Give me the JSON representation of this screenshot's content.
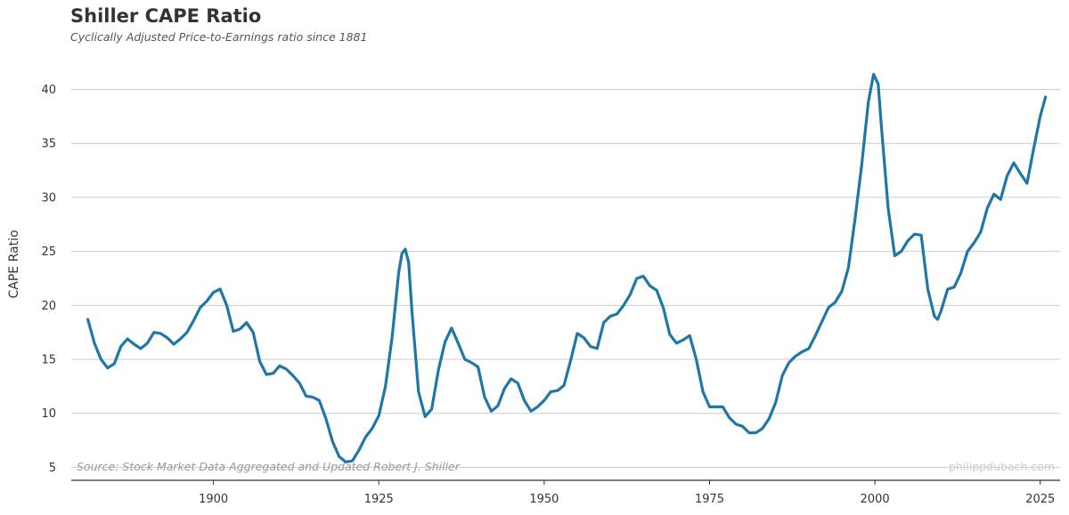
{
  "chart_data": {
    "type": "line",
    "title": "Shiller CAPE Ratio",
    "subtitle": "Cyclically Adjusted Price-to-Earnings ratio since 1881",
    "ylabel": "CAPE Ratio",
    "xlabel": "",
    "xlim": [
      1878.5,
      2028
    ],
    "ylim": [
      3.8,
      43.5
    ],
    "x_ticks": [
      1900,
      1925,
      1950,
      1975,
      2000,
      2025
    ],
    "y_ticks": [
      5,
      10,
      15,
      20,
      25,
      30,
      35,
      40
    ],
    "grid": "horizontal",
    "legend": "none",
    "line_color": "#1f77a8",
    "source": "Source: Stock Market Data Aggregated and Updated Robert J. Shiller",
    "credit": "philippdubach.com",
    "series": [
      {
        "x": [
          1881,
          1882,
          1883,
          1884,
          1885,
          1886,
          1887,
          1888,
          1889,
          1890,
          1891,
          1892,
          1893,
          1894,
          1895,
          1896,
          1897,
          1898,
          1899,
          1900,
          1901,
          1902,
          1903,
          1904,
          1905,
          1906,
          1907,
          1908,
          1909,
          1910,
          1911,
          1912,
          1913,
          1914,
          1915,
          1916,
          1917,
          1918,
          1919,
          1920,
          1921,
          1922,
          1923,
          1924,
          1925,
          1926,
          1927,
          1928,
          1928.5,
          1929,
          1929.5,
          1930,
          1931,
          1932,
          1933,
          1934,
          1935,
          1936,
          1937,
          1938,
          1939,
          1940,
          1941,
          1942,
          1943,
          1944,
          1945,
          1946,
          1947,
          1948,
          1949,
          1950,
          1951,
          1952,
          1953,
          1954,
          1955,
          1956,
          1957,
          1958,
          1959,
          1960,
          1961,
          1962,
          1963,
          1964,
          1965,
          1966,
          1967,
          1968,
          1969,
          1970,
          1971,
          1972,
          1973,
          1974,
          1975,
          1976,
          1977,
          1978,
          1979,
          1980,
          1981,
          1982,
          1983,
          1984,
          1985,
          1986,
          1987,
          1988,
          1989,
          1990,
          1991,
          1992,
          1993,
          1994,
          1995,
          1996,
          1997,
          1998,
          1999,
          1999.8,
          2000.5,
          2001,
          2002,
          2003,
          2004,
          2005,
          2006,
          2007,
          2008,
          2009,
          2009.5,
          2010,
          2011,
          2012,
          2013,
          2014,
          2015,
          2016,
          2017,
          2018,
          2019,
          2020,
          2021,
          2022,
          2023,
          2024,
          2025,
          2025.8
        ],
        "y": [
          18.7,
          16.5,
          15.0,
          14.2,
          14.6,
          16.2,
          16.9,
          16.4,
          16.0,
          16.5,
          17.5,
          17.4,
          17.0,
          16.4,
          16.9,
          17.5,
          18.6,
          19.8,
          20.4,
          21.2,
          21.5,
          20.0,
          17.6,
          17.8,
          18.4,
          17.5,
          14.8,
          13.6,
          13.7,
          14.4,
          14.1,
          13.5,
          12.8,
          11.6,
          11.5,
          11.2,
          9.5,
          7.4,
          6.0,
          5.5,
          5.6,
          6.6,
          7.8,
          8.6,
          9.8,
          12.5,
          17.0,
          23.0,
          24.8,
          25.2,
          24.0,
          19.5,
          12.0,
          9.7,
          10.4,
          14.0,
          16.6,
          17.9,
          16.5,
          15.0,
          14.7,
          14.3,
          11.5,
          10.2,
          10.7,
          12.3,
          13.2,
          12.8,
          11.2,
          10.2,
          10.6,
          11.2,
          12.0,
          12.1,
          12.6,
          14.9,
          17.4,
          17.0,
          16.2,
          16.0,
          18.4,
          19.0,
          19.2,
          20.0,
          21.0,
          22.5,
          22.7,
          21.8,
          21.4,
          19.8,
          17.3,
          16.5,
          16.8,
          17.2,
          15.0,
          12.0,
          10.6,
          10.6,
          10.6,
          9.6,
          9.0,
          8.8,
          8.2,
          8.2,
          8.6,
          9.5,
          11.0,
          13.5,
          14.7,
          15.3,
          15.7,
          16.0,
          17.2,
          18.5,
          19.8,
          20.3,
          21.3,
          23.5,
          28.0,
          33.0,
          38.8,
          41.4,
          40.5,
          36.5,
          29.0,
          24.6,
          25.0,
          26.0,
          26.6,
          26.5,
          21.5,
          19.0,
          18.7,
          19.5,
          21.5,
          21.7,
          23.0,
          25.0,
          25.8,
          26.8,
          29.0,
          30.3,
          29.8,
          32.0,
          33.2,
          32.2,
          31.3,
          34.5,
          37.5,
          39.3
        ]
      }
    ]
  }
}
